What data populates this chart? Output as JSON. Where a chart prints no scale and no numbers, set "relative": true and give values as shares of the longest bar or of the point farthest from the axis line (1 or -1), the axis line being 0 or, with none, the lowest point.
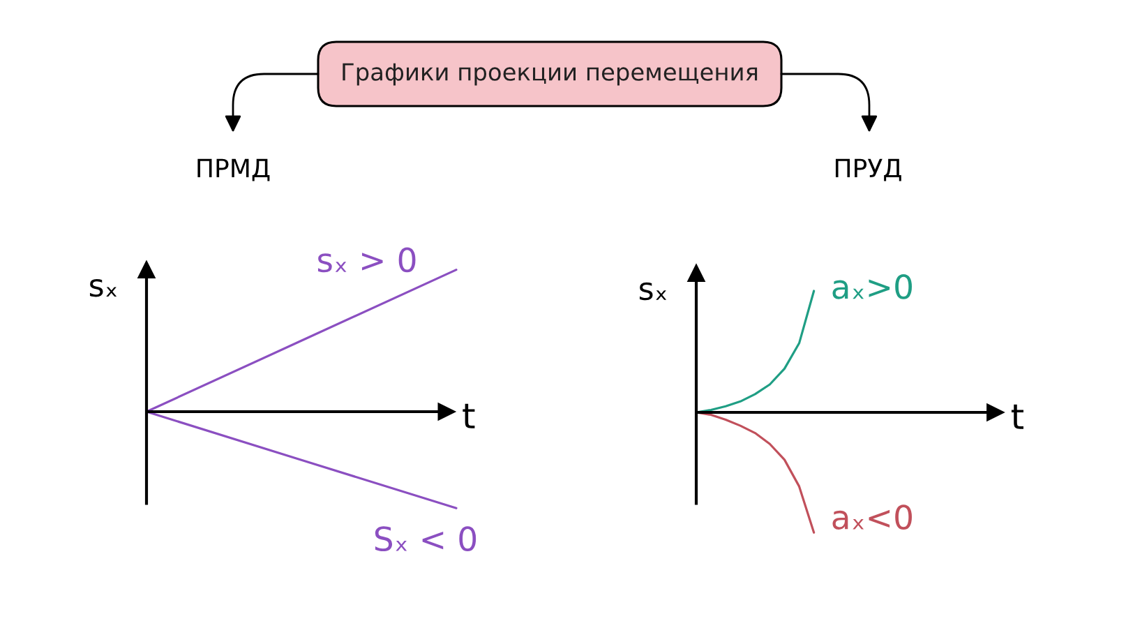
{
  "chart_data": [
    {
      "type": "line",
      "title": "Графики проекции перемещения",
      "subtitle": "ПРМД",
      "xlabel": "t",
      "ylabel": "sₓ",
      "relative": true,
      "categories": [
        null,
        null,
        null
      ],
      "series": [
        {
          "name": "sₓ > 0",
          "color": "#8b4fc1",
          "values": [
            0,
            0.5,
            1
          ]
        },
        {
          "name": "Sₓ < 0",
          "color": "#8b4fc1",
          "values": [
            0,
            -0.34,
            -0.68
          ]
        }
      ]
    },
    {
      "type": "line",
      "subtitle": "ПРУД",
      "xlabel": "t",
      "ylabel": "sₓ",
      "relative": true,
      "categories": [
        null,
        null,
        null,
        null,
        null,
        null,
        null,
        null,
        null,
        null,
        null,
        null,
        null,
        null,
        null,
        null,
        null,
        null,
        null,
        null,
        null
      ],
      "series": [
        {
          "name": "aₓ>0",
          "color": "#1f9e84",
          "values": [
            0,
            0.02,
            0.05,
            0.09,
            0.15,
            0.23,
            0.36,
            0.57,
            1,
            null,
            null,
            null,
            null,
            null,
            null,
            null,
            null,
            null,
            null,
            null,
            null
          ]
        },
        {
          "name": "aₓ<0",
          "color": "#c1505b",
          "values": [
            0,
            -0.02,
            -0.06,
            -0.11,
            -0.17,
            -0.26,
            -0.39,
            -0.61,
            -0.99,
            null,
            null,
            null,
            null,
            null,
            null,
            null,
            null,
            null,
            null,
            null,
            null
          ]
        }
      ]
    }
  ]
}
